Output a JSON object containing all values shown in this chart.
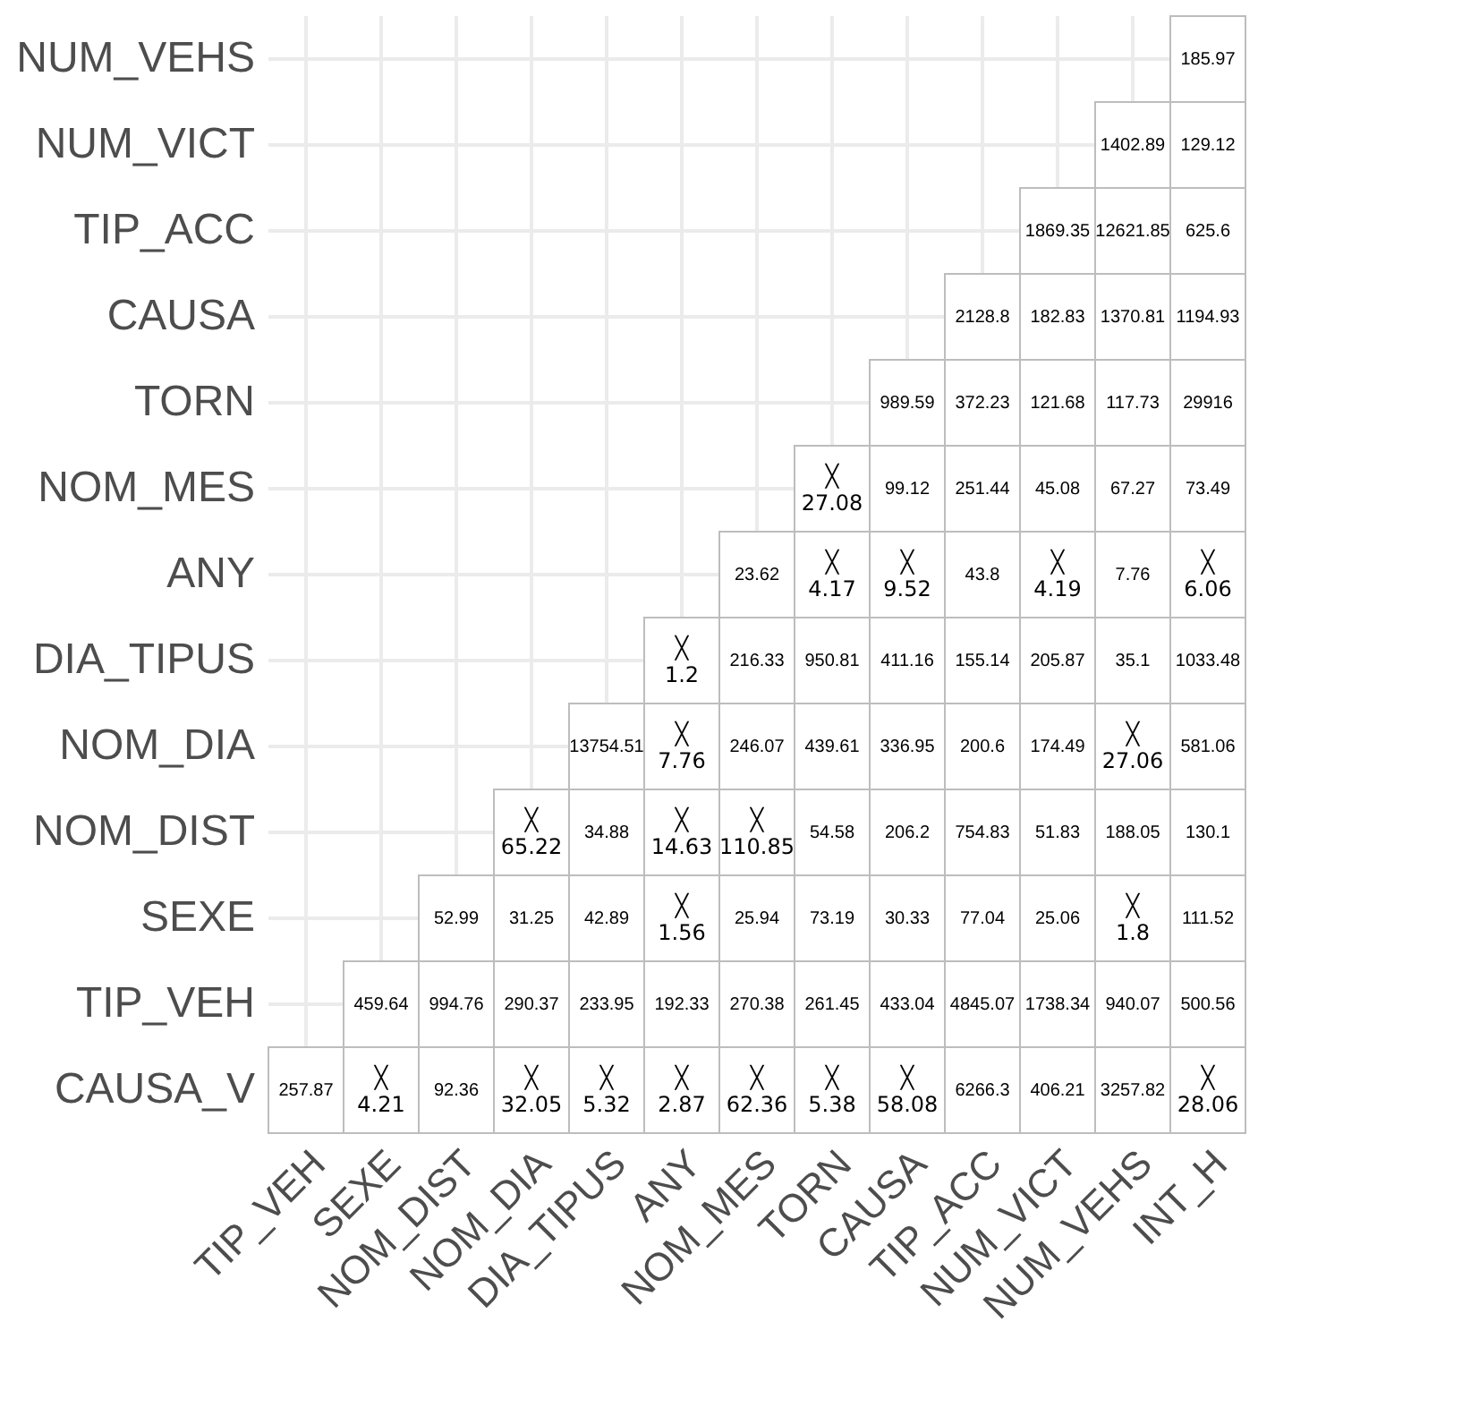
{
  "chart_data": {
    "type": "heatmap",
    "categories": [
      "TIP_VEH",
      "SEXE",
      "NOM_DIST",
      "NOM_DIA",
      "DIA_TIPUS",
      "ANY",
      "NOM_MES",
      "TORN",
      "CAUSA",
      "TIP_ACC",
      "NUM_VICT",
      "NUM_VEHS",
      "INT_H"
    ],
    "y_categories": [
      "NUM_VEHS",
      "NUM_VICT",
      "TIP_ACC",
      "CAUSA",
      "TORN",
      "NOM_MES",
      "ANY",
      "DIA_TIPUS",
      "NOM_DIA",
      "NOM_DIST",
      "SEXE",
      "TIP_VEH",
      "CAUSA_V"
    ],
    "cells": [
      [
        null,
        null,
        null,
        null,
        null,
        null,
        null,
        null,
        null,
        null,
        null,
        null,
        185.97
      ],
      [
        null,
        null,
        null,
        null,
        null,
        null,
        null,
        null,
        null,
        null,
        null,
        1402.89,
        129.12
      ],
      [
        null,
        null,
        null,
        null,
        null,
        null,
        null,
        null,
        null,
        null,
        1869.35,
        12621.85,
        625.6
      ],
      [
        null,
        null,
        null,
        null,
        null,
        null,
        null,
        null,
        null,
        2128.8,
        182.83,
        1370.81,
        1194.93
      ],
      [
        null,
        null,
        null,
        null,
        null,
        null,
        null,
        null,
        989.59,
        372.23,
        121.68,
        117.73,
        29916
      ],
      [
        null,
        null,
        null,
        null,
        null,
        null,
        null,
        27.08,
        99.12,
        251.44,
        45.08,
        67.27,
        73.49
      ],
      [
        null,
        null,
        null,
        null,
        null,
        null,
        23.62,
        4.17,
        9.52,
        43.8,
        4.19,
        7.76,
        6.06
      ],
      [
        null,
        null,
        null,
        null,
        null,
        1.2,
        216.33,
        950.81,
        411.16,
        155.14,
        205.87,
        35.1,
        1033.48
      ],
      [
        null,
        null,
        null,
        null,
        13754.51,
        7.76,
        246.07,
        439.61,
        336.95,
        200.6,
        174.49,
        27.06,
        581.06
      ],
      [
        null,
        null,
        null,
        65.22,
        34.88,
        14.63,
        110.85,
        54.58,
        206.2,
        754.83,
        51.83,
        188.05,
        130.1
      ],
      [
        null,
        null,
        52.99,
        31.25,
        42.89,
        1.56,
        25.94,
        73.19,
        30.33,
        77.04,
        25.06,
        1.8,
        111.52
      ],
      [
        null,
        459.64,
        994.76,
        290.37,
        233.95,
        192.33,
        270.38,
        261.45,
        433.04,
        4845.07,
        1738.34,
        940.07,
        500.56
      ],
      [
        257.87,
        4.21,
        92.36,
        32.05,
        5.32,
        2.87,
        62.36,
        5.38,
        58.08,
        6266.3,
        406.21,
        3257.82,
        28.06
      ]
    ],
    "cell_labels": [
      [
        null,
        null,
        null,
        null,
        null,
        null,
        null,
        null,
        null,
        null,
        null,
        null,
        "185.97"
      ],
      [
        null,
        null,
        null,
        null,
        null,
        null,
        null,
        null,
        null,
        null,
        null,
        "1402.89",
        "129.12"
      ],
      [
        null,
        null,
        null,
        null,
        null,
        null,
        null,
        null,
        null,
        null,
        "1869.35",
        "12621.85",
        "625.6"
      ],
      [
        null,
        null,
        null,
        null,
        null,
        null,
        null,
        null,
        null,
        "2128.8",
        "182.83",
        "1370.81",
        "1194.93"
      ],
      [
        null,
        null,
        null,
        null,
        null,
        null,
        null,
        null,
        "989.59",
        "372.23",
        "121.68",
        "117.73",
        "29916"
      ],
      [
        null,
        null,
        null,
        null,
        null,
        null,
        null,
        "╳\n27.08",
        "99.12",
        "251.44",
        "45.08",
        "67.27",
        "73.49"
      ],
      [
        null,
        null,
        null,
        null,
        null,
        null,
        "23.62",
        "╳\n4.17",
        "╳\n9.52",
        "43.8",
        "╳\n4.19",
        "7.76",
        "╳\n6.06"
      ],
      [
        null,
        null,
        null,
        null,
        null,
        "╳\n1.2",
        "216.33",
        "950.81",
        "411.16",
        "155.14",
        "205.87",
        "35.1",
        "1033.48"
      ],
      [
        null,
        null,
        null,
        null,
        "13754.51",
        "╳\n7.76",
        "246.07",
        "439.61",
        "336.95",
        "200.6",
        "174.49",
        "╳\n27.06",
        "581.06"
      ],
      [
        null,
        null,
        null,
        "╳\n65.22",
        "34.88",
        "╳\n14.63",
        "╳\n110.85",
        "54.58",
        "206.2",
        "754.83",
        "51.83",
        "188.05",
        "130.1"
      ],
      [
        null,
        null,
        "52.99",
        "31.25",
        "42.89",
        "╳\n1.56",
        "25.94",
        "73.19",
        "30.33",
        "77.04",
        "25.06",
        "╳\n1.8",
        "111.52"
      ],
      [
        null,
        "459.64",
        "994.76",
        "290.37",
        "233.95",
        "192.33",
        "270.38",
        "261.45",
        "433.04",
        "4845.07",
        "1738.34",
        "940.07",
        "500.56"
      ],
      [
        "257.87",
        "╳\n4.21",
        "92.36",
        "╳\n32.05",
        "╳\n5.32",
        "╳\n2.87",
        "╳\n62.36",
        "╳\n5.38",
        "╳\n58.08",
        "6266.3",
        "406.21",
        "3257.82",
        "╳\n28.06"
      ]
    ],
    "data_labels": true,
    "grid": true
  }
}
